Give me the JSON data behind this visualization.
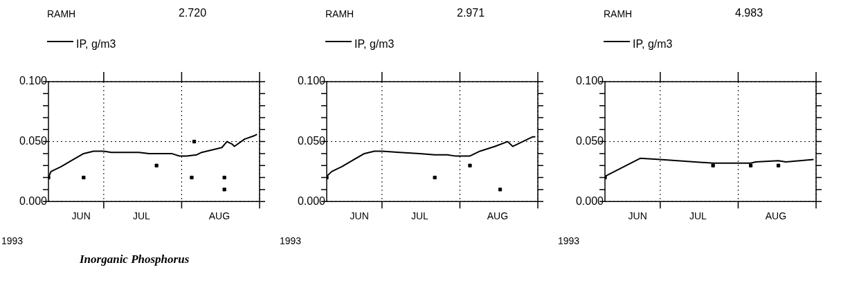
{
  "chart_data": [
    {
      "type": "line",
      "title": "RAMH",
      "subtitle": "2.720",
      "xlabel": "1993",
      "legend": "top left",
      "grid": true,
      "tick_labels": "xy",
      "annotations": [
        "Inorganic Phosphorus"
      ],
      "xlim": [
        "1993-06-09",
        "1993-09-01"
      ],
      "xticks": [
        {
          "value": "1993-06-22",
          "label": "JUN"
        },
        {
          "value": "1993-07-01",
          "label": null
        },
        {
          "value": "1993-07-16",
          "label": "JUL"
        },
        {
          "value": "1993-08-01",
          "label": null
        },
        {
          "value": "1993-08-16",
          "label": "AUG"
        },
        {
          "value": "1993-09-01",
          "label": null
        }
      ],
      "ylim": [
        0,
        0.1
      ],
      "yticks": [
        {
          "value": 0,
          "label": "0.000"
        },
        {
          "value": 0.01,
          "label": null
        },
        {
          "value": 0.02,
          "label": null
        },
        {
          "value": 0.03,
          "label": null
        },
        {
          "value": 0.04,
          "label": null
        },
        {
          "value": 0.05,
          "label": "0.050"
        },
        {
          "value": 0.06,
          "label": null
        },
        {
          "value": 0.07,
          "label": null
        },
        {
          "value": 0.08,
          "label": null
        },
        {
          "value": 0.09,
          "label": null
        },
        {
          "value": 0.1,
          "label": "0.100"
        }
      ],
      "series": [
        {
          "type": "line",
          "name": "IP, g/m3",
          "color": "#000000",
          "marker": "none",
          "x": [
            "1993-06-09",
            "1993-06-10",
            "1993-06-14",
            "1993-06-18",
            "1993-06-23",
            "1993-06-27",
            "1993-07-01",
            "1993-07-04",
            "1993-07-11",
            "1993-07-15",
            "1993-07-19",
            "1993-07-24",
            "1993-07-28",
            "1993-07-31",
            "1993-08-03",
            "1993-08-07",
            "1993-08-09",
            "1993-08-17",
            "1993-08-19",
            "1993-08-21",
            "1993-08-22",
            "1993-08-26",
            "1993-08-30",
            "1993-08-31"
          ],
          "values": [
            0.02,
            0.025,
            0.029,
            0.034,
            0.04,
            0.042,
            0.042,
            0.041,
            0.041,
            0.041,
            0.04,
            0.04,
            0.04,
            0.038,
            0.038,
            0.039,
            0.041,
            0.045,
            0.05,
            0.048,
            0.046,
            0.052,
            0.055,
            0.056
          ]
        },
        {
          "type": "scatter",
          "color": "#000000",
          "marker": "square",
          "x": [
            "1993-06-09",
            "1993-06-23",
            "1993-07-22",
            "1993-08-06",
            "1993-08-05",
            "1993-08-18",
            "1993-08-18"
          ],
          "values": [
            0.02,
            0.02,
            0.03,
            0.05,
            0.02,
            0.02,
            0.01
          ]
        }
      ]
    },
    {
      "type": "line",
      "title": "RAMH",
      "subtitle": "2.971",
      "xlabel": "1993",
      "legend": "top left",
      "grid": true,
      "tick_labels": "xy",
      "xlim": [
        "1993-06-09",
        "1993-09-01"
      ],
      "xticks": [
        {
          "value": "1993-06-22",
          "label": "JUN"
        },
        {
          "value": "1993-07-01",
          "label": null
        },
        {
          "value": "1993-07-16",
          "label": "JUL"
        },
        {
          "value": "1993-08-01",
          "label": null
        },
        {
          "value": "1993-08-16",
          "label": "AUG"
        },
        {
          "value": "1993-09-01",
          "label": null
        }
      ],
      "ylim": [
        0,
        0.1
      ],
      "yticks": [
        {
          "value": 0,
          "label": "0.000"
        },
        {
          "value": 0.01,
          "label": null
        },
        {
          "value": 0.02,
          "label": null
        },
        {
          "value": 0.03,
          "label": null
        },
        {
          "value": 0.04,
          "label": null
        },
        {
          "value": 0.05,
          "label": "0.050"
        },
        {
          "value": 0.06,
          "label": null
        },
        {
          "value": 0.07,
          "label": null
        },
        {
          "value": 0.08,
          "label": null
        },
        {
          "value": 0.09,
          "label": null
        },
        {
          "value": 0.1,
          "label": "0.100"
        }
      ],
      "series": [
        {
          "type": "line",
          "name": "IP, g/m3",
          "color": "#000000",
          "marker": "none",
          "x": [
            "1993-06-09",
            "1993-06-11",
            "1993-06-15",
            "1993-06-19",
            "1993-06-24",
            "1993-06-28",
            "1993-07-01",
            "1993-07-08",
            "1993-07-16",
            "1993-07-22",
            "1993-07-27",
            "1993-07-30",
            "1993-08-03",
            "1993-08-05",
            "1993-08-09",
            "1993-08-15",
            "1993-08-20",
            "1993-08-22",
            "1993-08-24",
            "1993-08-28",
            "1993-08-30",
            "1993-08-31"
          ],
          "values": [
            0.021,
            0.025,
            0.029,
            0.034,
            0.04,
            0.042,
            0.042,
            0.041,
            0.04,
            0.039,
            0.039,
            0.038,
            0.038,
            0.038,
            0.042,
            0.046,
            0.05,
            0.046,
            0.048,
            0.052,
            0.054,
            0.054
          ]
        },
        {
          "type": "scatter",
          "color": "#000000",
          "marker": "square",
          "x": [
            "1993-06-09",
            "1993-07-22",
            "1993-08-05",
            "1993-08-17"
          ],
          "values": [
            0.02,
            0.02,
            0.03,
            0.01
          ]
        }
      ]
    },
    {
      "type": "line",
      "title": "RAMH",
      "subtitle": "4.983",
      "xlabel": "1993",
      "legend": "top left",
      "grid": true,
      "tick_labels": "xy",
      "xlim": [
        "1993-06-09",
        "1993-09-01"
      ],
      "xticks": [
        {
          "value": "1993-06-22",
          "label": "JUN"
        },
        {
          "value": "1993-07-01",
          "label": null
        },
        {
          "value": "1993-07-16",
          "label": "JUL"
        },
        {
          "value": "1993-08-01",
          "label": null
        },
        {
          "value": "1993-08-16",
          "label": "AUG"
        },
        {
          "value": "1993-09-01",
          "label": null
        }
      ],
      "ylim": [
        0,
        0.1
      ],
      "yticks": [
        {
          "value": 0,
          "label": "0.000"
        },
        {
          "value": 0.01,
          "label": null
        },
        {
          "value": 0.02,
          "label": null
        },
        {
          "value": 0.03,
          "label": null
        },
        {
          "value": 0.04,
          "label": null
        },
        {
          "value": 0.05,
          "label": "0.050"
        },
        {
          "value": 0.06,
          "label": null
        },
        {
          "value": 0.07,
          "label": null
        },
        {
          "value": 0.08,
          "label": null
        },
        {
          "value": 0.09,
          "label": null
        },
        {
          "value": 0.1,
          "label": "0.100"
        }
      ],
      "series": [
        {
          "type": "line",
          "name": "IP, g/m3",
          "color": "#000000",
          "marker": "none",
          "x": [
            "1993-06-09",
            "1993-06-23",
            "1993-07-01",
            "1993-07-22",
            "1993-07-29",
            "1993-08-06",
            "1993-08-08",
            "1993-08-17",
            "1993-08-20",
            "1993-08-31"
          ],
          "values": [
            0.021,
            0.036,
            0.035,
            0.032,
            0.032,
            0.032,
            0.033,
            0.034,
            0.033,
            0.035
          ]
        },
        {
          "type": "scatter",
          "color": "#000000",
          "marker": "square",
          "x": [
            "1993-06-09",
            "1993-07-22",
            "1993-08-06",
            "1993-08-17"
          ],
          "values": [
            0.02,
            0.03,
            0.03,
            0.03
          ]
        }
      ]
    }
  ]
}
